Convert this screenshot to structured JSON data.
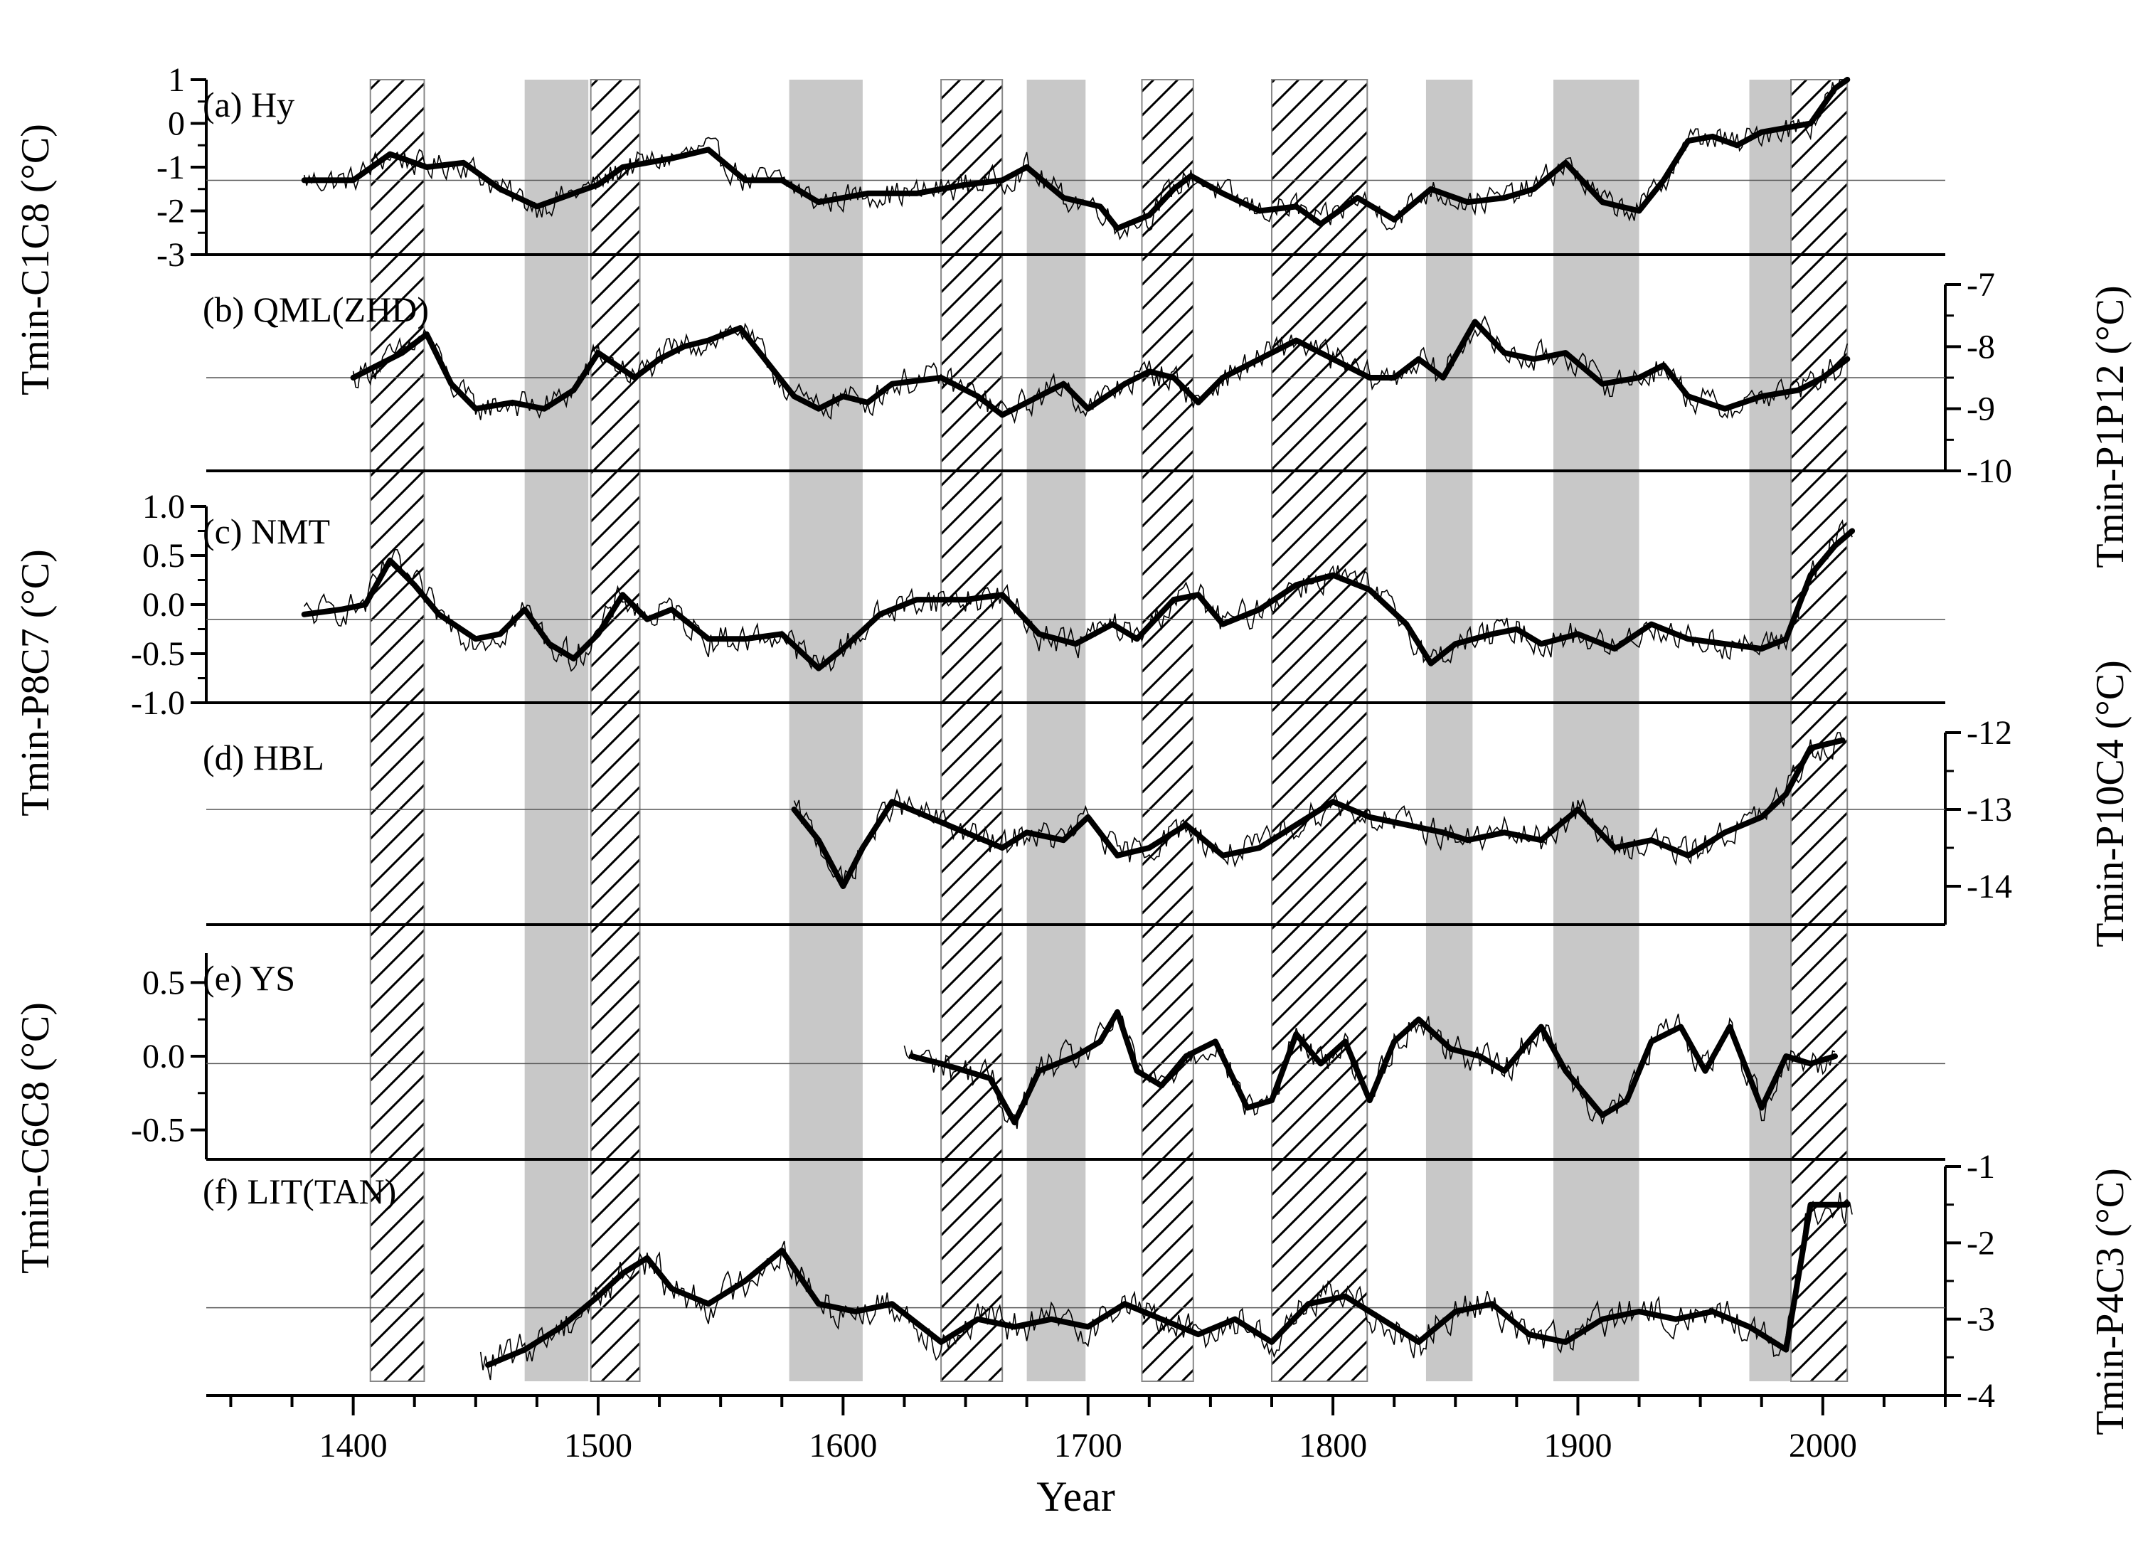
{
  "chart_data": {
    "type": "line",
    "x_axis": {
      "label": "Year",
      "range": [
        1340,
        2050
      ],
      "ticks": [
        1400,
        1500,
        1600,
        1700,
        1800,
        1900,
        2000
      ],
      "tick_labels": [
        "1400",
        "1500",
        "1600",
        "1700",
        "1800",
        "1900",
        "2000"
      ]
    },
    "colors": {
      "line": "#000000",
      "gray_band": "#c8c8c8",
      "hatch": "#000000",
      "mean_line": "#555555"
    },
    "gray_bands": [
      [
        1470,
        1496
      ],
      [
        1578,
        1608
      ],
      [
        1675,
        1699
      ],
      [
        1838,
        1857
      ],
      [
        1890,
        1925
      ],
      [
        1970,
        1987
      ]
    ],
    "hatched_bands": [
      [
        1407,
        1429
      ],
      [
        1497,
        1517
      ],
      [
        1640,
        1665
      ],
      [
        1722,
        1743
      ],
      [
        1775,
        1814
      ],
      [
        1987,
        2010
      ]
    ],
    "panels": [
      {
        "id": "a",
        "label": "(a) Hy",
        "axis_side": "left",
        "ylabel": "Tmin-C1C8 (°C)",
        "ylim": [
          -3,
          1
        ],
        "yticks": [
          -3,
          -2,
          -1,
          0,
          1
        ],
        "ytick_labels": [
          "-3",
          "-2",
          "-1",
          "0",
          "1"
        ],
        "mean": -1.3,
        "start": 1380,
        "end": 2010,
        "smooth": [
          [
            1380,
            -1.3
          ],
          [
            1400,
            -1.3
          ],
          [
            1415,
            -0.7
          ],
          [
            1430,
            -1.0
          ],
          [
            1445,
            -0.9
          ],
          [
            1460,
            -1.5
          ],
          [
            1475,
            -1.9
          ],
          [
            1490,
            -1.6
          ],
          [
            1500,
            -1.4
          ],
          [
            1510,
            -1.0
          ],
          [
            1520,
            -0.9
          ],
          [
            1530,
            -0.8
          ],
          [
            1545,
            -0.6
          ],
          [
            1560,
            -1.3
          ],
          [
            1575,
            -1.3
          ],
          [
            1590,
            -1.8
          ],
          [
            1610,
            -1.6
          ],
          [
            1630,
            -1.6
          ],
          [
            1650,
            -1.4
          ],
          [
            1665,
            -1.3
          ],
          [
            1675,
            -1.0
          ],
          [
            1690,
            -1.7
          ],
          [
            1705,
            -1.9
          ],
          [
            1712,
            -2.4
          ],
          [
            1725,
            -2.1
          ],
          [
            1735,
            -1.5
          ],
          [
            1742,
            -1.2
          ],
          [
            1755,
            -1.6
          ],
          [
            1770,
            -2.0
          ],
          [
            1785,
            -1.9
          ],
          [
            1795,
            -2.3
          ],
          [
            1810,
            -1.7
          ],
          [
            1825,
            -2.2
          ],
          [
            1840,
            -1.5
          ],
          [
            1855,
            -1.8
          ],
          [
            1870,
            -1.7
          ],
          [
            1882,
            -1.5
          ],
          [
            1895,
            -0.9
          ],
          [
            1910,
            -1.8
          ],
          [
            1925,
            -2.0
          ],
          [
            1935,
            -1.3
          ],
          [
            1945,
            -0.4
          ],
          [
            1955,
            -0.3
          ],
          [
            1965,
            -0.5
          ],
          [
            1975,
            -0.2
          ],
          [
            1985,
            -0.1
          ],
          [
            1995,
            0.0
          ],
          [
            2005,
            0.8
          ],
          [
            2010,
            1.0
          ]
        ]
      },
      {
        "id": "b",
        "label": "(b) QML(ZHD)",
        "axis_side": "right",
        "ylabel": "Tmin-P1P12 (°C)",
        "ylim": [
          -10,
          -7
        ],
        "yticks": [
          -10,
          -9,
          -8,
          -7
        ],
        "ytick_labels": [
          "-10",
          "-9",
          "-8",
          "-7"
        ],
        "mean": -8.5,
        "start": 1400,
        "end": 2010,
        "smooth": [
          [
            1400,
            -8.5
          ],
          [
            1410,
            -8.3
          ],
          [
            1420,
            -8.1
          ],
          [
            1430,
            -7.8
          ],
          [
            1440,
            -8.6
          ],
          [
            1450,
            -9.0
          ],
          [
            1465,
            -8.9
          ],
          [
            1478,
            -9.0
          ],
          [
            1490,
            -8.7
          ],
          [
            1500,
            -8.1
          ],
          [
            1515,
            -8.5
          ],
          [
            1525,
            -8.2
          ],
          [
            1535,
            -8.0
          ],
          [
            1545,
            -7.9
          ],
          [
            1558,
            -7.7
          ],
          [
            1570,
            -8.3
          ],
          [
            1580,
            -8.8
          ],
          [
            1590,
            -9.0
          ],
          [
            1600,
            -8.8
          ],
          [
            1610,
            -8.9
          ],
          [
            1620,
            -8.6
          ],
          [
            1640,
            -8.5
          ],
          [
            1655,
            -8.8
          ],
          [
            1665,
            -9.1
          ],
          [
            1680,
            -8.8
          ],
          [
            1690,
            -8.6
          ],
          [
            1700,
            -9.0
          ],
          [
            1715,
            -8.6
          ],
          [
            1725,
            -8.4
          ],
          [
            1735,
            -8.5
          ],
          [
            1745,
            -8.9
          ],
          [
            1755,
            -8.5
          ],
          [
            1770,
            -8.2
          ],
          [
            1785,
            -7.9
          ],
          [
            1800,
            -8.2
          ],
          [
            1815,
            -8.5
          ],
          [
            1825,
            -8.5
          ],
          [
            1835,
            -8.2
          ],
          [
            1845,
            -8.5
          ],
          [
            1858,
            -7.6
          ],
          [
            1870,
            -8.1
          ],
          [
            1882,
            -8.2
          ],
          [
            1895,
            -8.1
          ],
          [
            1910,
            -8.6
          ],
          [
            1925,
            -8.5
          ],
          [
            1935,
            -8.3
          ],
          [
            1945,
            -8.8
          ],
          [
            1960,
            -9.0
          ],
          [
            1975,
            -8.8
          ],
          [
            1990,
            -8.7
          ],
          [
            2000,
            -8.5
          ],
          [
            2010,
            -8.2
          ]
        ]
      },
      {
        "id": "c",
        "label": "(c) NMT",
        "axis_side": "left",
        "ylabel": "Tmin-P8C7 (°C)",
        "ylim": [
          -1.0,
          1.0
        ],
        "yticks": [
          -1.0,
          -0.5,
          0.0,
          0.5,
          1.0
        ],
        "ytick_labels": [
          "-1.0",
          "-0.5",
          "0.0",
          "0.5",
          "1.0"
        ],
        "mean": -0.15,
        "start": 1380,
        "end": 2012,
        "smooth": [
          [
            1380,
            -0.1
          ],
          [
            1395,
            -0.05
          ],
          [
            1405,
            0.0
          ],
          [
            1415,
            0.45
          ],
          [
            1425,
            0.2
          ],
          [
            1435,
            -0.1
          ],
          [
            1450,
            -0.35
          ],
          [
            1460,
            -0.3
          ],
          [
            1470,
            -0.05
          ],
          [
            1480,
            -0.4
          ],
          [
            1490,
            -0.55
          ],
          [
            1500,
            -0.3
          ],
          [
            1510,
            0.1
          ],
          [
            1520,
            -0.15
          ],
          [
            1530,
            -0.05
          ],
          [
            1545,
            -0.35
          ],
          [
            1560,
            -0.35
          ],
          [
            1575,
            -0.3
          ],
          [
            1590,
            -0.65
          ],
          [
            1600,
            -0.45
          ],
          [
            1615,
            -0.1
          ],
          [
            1630,
            0.05
          ],
          [
            1650,
            0.05
          ],
          [
            1665,
            0.1
          ],
          [
            1680,
            -0.3
          ],
          [
            1695,
            -0.4
          ],
          [
            1710,
            -0.2
          ],
          [
            1720,
            -0.35
          ],
          [
            1735,
            0.05
          ],
          [
            1745,
            0.1
          ],
          [
            1755,
            -0.2
          ],
          [
            1770,
            -0.05
          ],
          [
            1785,
            0.2
          ],
          [
            1800,
            0.3
          ],
          [
            1815,
            0.15
          ],
          [
            1830,
            -0.2
          ],
          [
            1840,
            -0.6
          ],
          [
            1850,
            -0.4
          ],
          [
            1865,
            -0.3
          ],
          [
            1875,
            -0.25
          ],
          [
            1885,
            -0.4
          ],
          [
            1900,
            -0.3
          ],
          [
            1915,
            -0.45
          ],
          [
            1930,
            -0.2
          ],
          [
            1945,
            -0.35
          ],
          [
            1960,
            -0.4
          ],
          [
            1975,
            -0.45
          ],
          [
            1985,
            -0.35
          ],
          [
            1995,
            0.3
          ],
          [
            2005,
            0.6
          ],
          [
            2012,
            0.75
          ]
        ]
      },
      {
        "id": "d",
        "label": "(d) HBL",
        "axis_side": "right",
        "ylabel": "Tmin-P10C4 (°C)",
        "ylim": [
          -14.5,
          -12
        ],
        "yticks": [
          -14,
          -13,
          -12
        ],
        "ytick_labels": [
          "-14",
          "-13",
          "-12"
        ],
        "mean": -13.0,
        "start": 1580,
        "end": 2008,
        "smooth": [
          [
            1580,
            -13.0
          ],
          [
            1590,
            -13.4
          ],
          [
            1600,
            -14.0
          ],
          [
            1608,
            -13.5
          ],
          [
            1620,
            -12.9
          ],
          [
            1635,
            -13.1
          ],
          [
            1650,
            -13.3
          ],
          [
            1665,
            -13.5
          ],
          [
            1675,
            -13.3
          ],
          [
            1690,
            -13.4
          ],
          [
            1700,
            -13.1
          ],
          [
            1712,
            -13.6
          ],
          [
            1725,
            -13.5
          ],
          [
            1740,
            -13.2
          ],
          [
            1755,
            -13.6
          ],
          [
            1770,
            -13.5
          ],
          [
            1785,
            -13.2
          ],
          [
            1800,
            -12.9
          ],
          [
            1815,
            -13.1
          ],
          [
            1830,
            -13.2
          ],
          [
            1845,
            -13.3
          ],
          [
            1855,
            -13.4
          ],
          [
            1870,
            -13.3
          ],
          [
            1885,
            -13.4
          ],
          [
            1900,
            -13.0
          ],
          [
            1915,
            -13.5
          ],
          [
            1930,
            -13.4
          ],
          [
            1945,
            -13.6
          ],
          [
            1960,
            -13.3
          ],
          [
            1975,
            -13.1
          ],
          [
            1985,
            -12.8
          ],
          [
            1995,
            -12.2
          ],
          [
            2008,
            -12.1
          ]
        ]
      },
      {
        "id": "e",
        "label": "(e) YS",
        "axis_side": "left",
        "ylabel": "Tmin-C6C8 (°C)",
        "ylim": [
          -0.7,
          0.7
        ],
        "yticks": [
          -0.5,
          0.0,
          0.5
        ],
        "ytick_labels": [
          "-0.5",
          "0.0",
          "0.5"
        ],
        "mean": -0.05,
        "start": 1625,
        "end": 2005,
        "smooth": [
          [
            1628,
            0.0
          ],
          [
            1640,
            -0.05
          ],
          [
            1650,
            -0.1
          ],
          [
            1660,
            -0.15
          ],
          [
            1670,
            -0.45
          ],
          [
            1680,
            -0.1
          ],
          [
            1695,
            0.0
          ],
          [
            1705,
            0.1
          ],
          [
            1712,
            0.3
          ],
          [
            1720,
            -0.1
          ],
          [
            1730,
            -0.2
          ],
          [
            1740,
            0.0
          ],
          [
            1752,
            0.1
          ],
          [
            1765,
            -0.35
          ],
          [
            1775,
            -0.3
          ],
          [
            1785,
            0.15
          ],
          [
            1795,
            -0.05
          ],
          [
            1805,
            0.1
          ],
          [
            1815,
            -0.3
          ],
          [
            1825,
            0.1
          ],
          [
            1835,
            0.25
          ],
          [
            1848,
            0.05
          ],
          [
            1860,
            0.0
          ],
          [
            1870,
            -0.1
          ],
          [
            1885,
            0.2
          ],
          [
            1895,
            -0.1
          ],
          [
            1910,
            -0.4
          ],
          [
            1920,
            -0.3
          ],
          [
            1930,
            0.1
          ],
          [
            1942,
            0.2
          ],
          [
            1952,
            -0.1
          ],
          [
            1962,
            0.2
          ],
          [
            1975,
            -0.35
          ],
          [
            1985,
            0.0
          ],
          [
            1995,
            -0.05
          ],
          [
            2005,
            0.0
          ]
        ]
      },
      {
        "id": "f",
        "label": "(f) LIT(TAN)",
        "axis_side": "right",
        "ylabel": "Tmin-P4C3 (°C)",
        "ylim": [
          -4,
          -1
        ],
        "yticks": [
          -4,
          -3,
          -2,
          -1
        ],
        "ytick_labels": [
          "-4",
          "-3",
          "-2",
          "-1"
        ],
        "mean": -2.85,
        "start": 1452,
        "end": 2012,
        "smooth": [
          [
            1455,
            -3.6
          ],
          [
            1470,
            -3.4
          ],
          [
            1485,
            -3.1
          ],
          [
            1500,
            -2.7
          ],
          [
            1510,
            -2.4
          ],
          [
            1520,
            -2.2
          ],
          [
            1530,
            -2.6
          ],
          [
            1545,
            -2.8
          ],
          [
            1560,
            -2.5
          ],
          [
            1575,
            -2.1
          ],
          [
            1590,
            -2.8
          ],
          [
            1605,
            -2.9
          ],
          [
            1620,
            -2.8
          ],
          [
            1640,
            -3.3
          ],
          [
            1655,
            -3.0
          ],
          [
            1670,
            -3.1
          ],
          [
            1685,
            -3.0
          ],
          [
            1700,
            -3.1
          ],
          [
            1715,
            -2.8
          ],
          [
            1730,
            -3.0
          ],
          [
            1745,
            -3.2
          ],
          [
            1760,
            -3.0
          ],
          [
            1775,
            -3.3
          ],
          [
            1790,
            -2.8
          ],
          [
            1805,
            -2.7
          ],
          [
            1820,
            -3.0
          ],
          [
            1835,
            -3.3
          ],
          [
            1850,
            -2.9
          ],
          [
            1865,
            -2.8
          ],
          [
            1880,
            -3.2
          ],
          [
            1895,
            -3.3
          ],
          [
            1910,
            -3.0
          ],
          [
            1925,
            -2.9
          ],
          [
            1940,
            -3.0
          ],
          [
            1955,
            -2.9
          ],
          [
            1970,
            -3.1
          ],
          [
            1985,
            -3.4
          ],
          [
            1995,
            -1.5
          ],
          [
            2010,
            -1.5
          ]
        ]
      }
    ]
  }
}
